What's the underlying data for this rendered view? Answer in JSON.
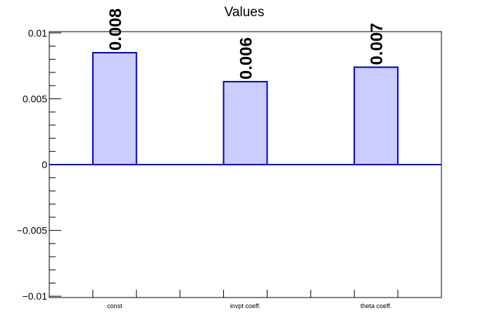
{
  "chart_data": {
    "type": "bar",
    "title": "Values",
    "xlabel": "",
    "ylabel": "",
    "categories": [
      "const",
      "invpt coeff.",
      "theta coeff."
    ],
    "values": [
      0.0085,
      0.0063,
      0.0074
    ],
    "data_labels": [
      "0.008",
      "0.006",
      "0.007"
    ],
    "ylim": [
      -0.0101,
      0.0101
    ],
    "yticks": [
      {
        "value": 0.01,
        "label": "0.01"
      },
      {
        "value": 0.005,
        "label": "0.005"
      },
      {
        "value": 0,
        "label": "0"
      },
      {
        "value": -0.005,
        "label": "−0.005"
      },
      {
        "value": -0.01,
        "label": "−0.01"
      }
    ],
    "grid": false,
    "legend": "none",
    "colors": {
      "bar_fill": "#ccccff",
      "bar_stroke": "#0000cc",
      "axis": "#000000"
    }
  }
}
